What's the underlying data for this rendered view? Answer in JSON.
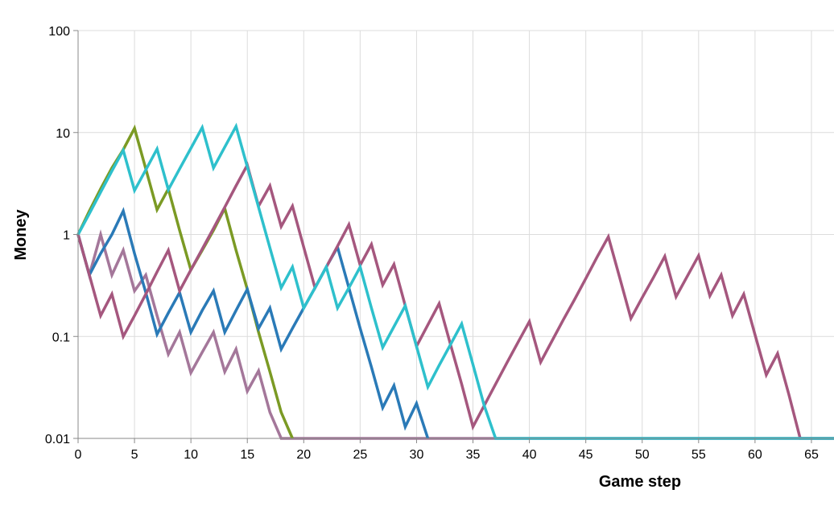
{
  "chart_data": {
    "type": "line",
    "title": "",
    "xlabel": "Game step",
    "ylabel": "Money",
    "y_scale": "log",
    "xlim": [
      0,
      67
    ],
    "ylim": [
      0.01,
      100
    ],
    "x_ticks": [
      0,
      5,
      10,
      15,
      20,
      25,
      30,
      35,
      40,
      45,
      50,
      55,
      60,
      65
    ],
    "y_ticks": [
      {
        "value": 100,
        "label": "100"
      },
      {
        "value": 10,
        "label": "10"
      },
      {
        "value": 1,
        "label": "1"
      },
      {
        "value": 0.1,
        "label": "0.1"
      },
      {
        "value": 0.01,
        "label": "0.01"
      }
    ],
    "grid": true,
    "legend": "none",
    "series": [
      {
        "color": "#a4779a",
        "x": [
          0,
          1,
          2,
          3,
          4,
          5,
          6,
          7,
          8,
          9,
          10,
          11,
          12,
          13,
          14,
          15,
          16,
          17,
          18,
          19,
          20,
          21,
          22,
          23,
          24,
          25,
          26,
          27,
          28,
          29,
          30,
          31,
          32,
          33,
          34,
          35,
          36,
          37,
          38,
          39,
          40,
          41,
          42,
          43,
          44,
          45,
          46,
          47,
          48,
          49,
          50,
          51,
          52,
          53,
          54,
          55,
          56,
          57,
          58,
          59,
          60,
          61,
          62,
          63,
          64,
          65,
          66,
          67
        ],
        "values": [
          1,
          0.4,
          1,
          0.4,
          0.7,
          0.28,
          0.4,
          0.16,
          0.067,
          0.11,
          0.044,
          0.07,
          0.11,
          0.045,
          0.075,
          0.029,
          0.046,
          0.018,
          0.01,
          0.01,
          0.01,
          0.01,
          0.01,
          0.01,
          0.01,
          0.01,
          0.01,
          0.01,
          0.01,
          0.01,
          0.01,
          0.01,
          0.01,
          0.01,
          0.01,
          0.01,
          0.01,
          0.01,
          0.01,
          0.01,
          0.01,
          0.01,
          0.01,
          0.01,
          0.01,
          0.01,
          0.01,
          0.01,
          0.01,
          0.01,
          0.01,
          0.01,
          0.01,
          0.01,
          0.01,
          0.01,
          0.01,
          0.01,
          0.01,
          0.01,
          0.01,
          0.01,
          0.01,
          0.01,
          0.01,
          0.01,
          0.01,
          0.01
        ]
      },
      {
        "color": "#7b9a24",
        "x": [
          0,
          1,
          2,
          3,
          4,
          5,
          6,
          7,
          8,
          9,
          10,
          11,
          12,
          13,
          14,
          15,
          16,
          17,
          18,
          19
        ],
        "values": [
          1,
          1.7,
          2.8,
          4.5,
          6.8,
          11,
          4.4,
          1.75,
          2.8,
          1.1,
          0.45,
          0.7,
          1.1,
          1.8,
          0.7,
          0.29,
          0.11,
          0.045,
          0.018,
          0.01
        ]
      },
      {
        "color": "#2a7ab7",
        "x": [
          0,
          1,
          2,
          3,
          4,
          5,
          6,
          7,
          8,
          9,
          10,
          11,
          12,
          13,
          14,
          15,
          16,
          17,
          18,
          19,
          20,
          21,
          22,
          23,
          24,
          25,
          26,
          27,
          28,
          29,
          30,
          31
        ],
        "values": [
          1,
          0.4,
          0.65,
          1,
          1.7,
          0.65,
          0.27,
          0.105,
          0.17,
          0.27,
          0.11,
          0.18,
          0.28,
          0.11,
          0.18,
          0.29,
          0.12,
          0.19,
          0.075,
          0.12,
          0.19,
          0.3,
          0.48,
          0.75,
          0.3,
          0.12,
          0.05,
          0.02,
          0.033,
          0.013,
          0.022,
          0.01
        ]
      },
      {
        "color": "#a5577e",
        "x": [
          0,
          1,
          2,
          3,
          4,
          5,
          6,
          7,
          8,
          9,
          10,
          11,
          12,
          13,
          14,
          15,
          16,
          17,
          18,
          19,
          20,
          21,
          22,
          23,
          24,
          25,
          26,
          27,
          28,
          29,
          30,
          31,
          32,
          33,
          34,
          35,
          36,
          37,
          38,
          39,
          40,
          41,
          42,
          43,
          44,
          45,
          46,
          47,
          48,
          49,
          50,
          51,
          52,
          53,
          54,
          55,
          56,
          57,
          58,
          59,
          60,
          61,
          62,
          63,
          64,
          65,
          66,
          67
        ],
        "values": [
          1,
          0.4,
          0.16,
          0.26,
          0.1,
          0.16,
          0.26,
          0.43,
          0.7,
          0.28,
          0.45,
          0.72,
          1.15,
          1.85,
          3,
          4.8,
          1.9,
          3,
          1.2,
          1.9,
          0.75,
          0.3,
          0.48,
          0.77,
          1.25,
          0.5,
          0.8,
          0.32,
          0.51,
          0.2,
          0.08,
          0.13,
          0.21,
          0.084,
          0.034,
          0.013,
          0.021,
          0.034,
          0.055,
          0.088,
          0.14,
          0.056,
          0.09,
          0.145,
          0.23,
          0.37,
          0.6,
          0.95,
          0.38,
          0.15,
          0.24,
          0.38,
          0.61,
          0.245,
          0.39,
          0.62,
          0.25,
          0.4,
          0.16,
          0.26,
          0.104,
          0.042,
          0.068,
          0.027,
          0.01,
          0.01,
          0.01,
          0.01
        ]
      },
      {
        "color": "#2ec0cc",
        "x": [
          0,
          1,
          2,
          3,
          4,
          5,
          6,
          7,
          8,
          9,
          10,
          11,
          12,
          13,
          14,
          15,
          16,
          17,
          18,
          19,
          20,
          21,
          22,
          23,
          24,
          25,
          26,
          27,
          28,
          29,
          30,
          31,
          32,
          33,
          34,
          35,
          36,
          37,
          38,
          39,
          40,
          41,
          42,
          43,
          44,
          45,
          46,
          47,
          48,
          49,
          50,
          51,
          52,
          53,
          54,
          55,
          56,
          57,
          58,
          59,
          60,
          61,
          62,
          63,
          64,
          65,
          66,
          67
        ],
        "values": [
          1,
          1.6,
          2.6,
          4.2,
          6.7,
          2.7,
          4.3,
          6.9,
          2.75,
          4.4,
          7,
          11.2,
          4.5,
          7.2,
          11.5,
          4.6,
          1.85,
          0.74,
          0.3,
          0.48,
          0.19,
          0.3,
          0.48,
          0.19,
          0.3,
          0.48,
          0.19,
          0.078,
          0.125,
          0.2,
          0.08,
          0.032,
          0.052,
          0.083,
          0.133,
          0.053,
          0.021,
          0.01,
          0.01,
          0.01,
          0.01,
          0.01,
          0.01,
          0.01,
          0.01,
          0.01,
          0.01,
          0.01,
          0.01,
          0.01,
          0.01,
          0.01,
          0.01,
          0.01,
          0.01,
          0.01,
          0.01,
          0.01,
          0.01,
          0.01,
          0.01,
          0.01,
          0.01,
          0.01,
          0.01,
          0.01,
          0.01,
          0.01
        ]
      }
    ]
  }
}
